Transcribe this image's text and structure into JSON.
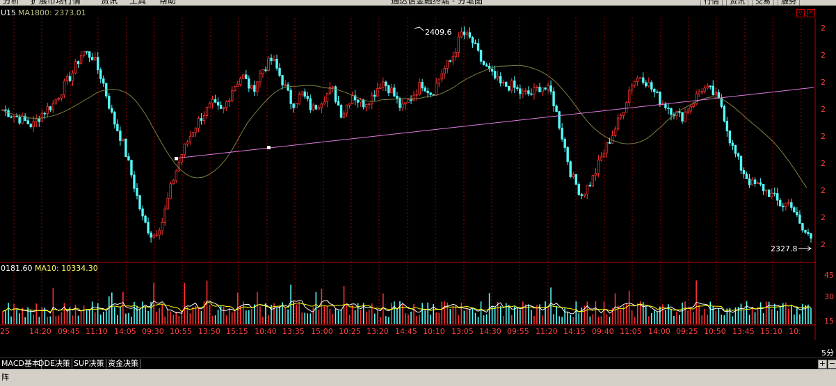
{
  "menu_items": [
    "分析",
    "扩展市场行情",
    "资讯",
    "工具",
    "帮助"
  ],
  "window_title": "通达信金融终端 - 分笔图",
  "toolbar_buttons": [
    "行情",
    "资讯",
    "交易",
    "服务"
  ],
  "indicator_header": {
    "symbol": "U15",
    "ma_label": "MA1800: 2373.01"
  },
  "price_markers": {
    "high": "2409.6",
    "low": "2327.8"
  },
  "price_axis_label": "2",
  "volume_header": {
    "value": "0181.60",
    "ma_label": "MA10: 10334.30"
  },
  "volume_axis": [
    "45",
    "30",
    "15"
  ],
  "time_labels": [
    "25",
    "14:20",
    "09:45",
    "11:10",
    "14:05",
    "09:30",
    "10:55",
    "13:50",
    "15:15",
    "10:40",
    "13:35",
    "15:00",
    "10:25",
    "13:20",
    "14:45",
    "10:10",
    "13:05",
    "14:30",
    "09:55",
    "11:20",
    "14:15",
    "09:40",
    "11:05",
    "14:00",
    "09:25",
    "10:50",
    "13:45",
    "15:10",
    "10:"
  ],
  "period_label": "5分",
  "tabs": [
    "MACD基本",
    "DDE决策",
    "SUP决策",
    "资金决策"
  ],
  "status_label": "阵",
  "zoom_buttons": [
    "+",
    "−"
  ],
  "colors": {
    "up": "#ff3232",
    "down": "#54fcfc",
    "ma": "#808040",
    "trend": "#e07ae0",
    "grid": "#a00000",
    "volume_ma1": "#ffffff",
    "volume_ma2": "#ffff00"
  },
  "chart_data": {
    "type": "candlestick",
    "price_range": [
      2322,
      2412
    ],
    "high": 2409.6,
    "low": 2327.8,
    "ma1800": 2373.01,
    "close_series": [
      2378,
      2376,
      2374,
      2372,
      2377,
      2380,
      2386,
      2392,
      2400,
      2398,
      2389,
      2375,
      2366,
      2352,
      2337,
      2330,
      2336,
      2351,
      2362,
      2370,
      2376,
      2380,
      2377,
      2386,
      2391,
      2385,
      2393,
      2397,
      2389,
      2380,
      2384,
      2378,
      2382,
      2386,
      2376,
      2384,
      2380,
      2383,
      2389,
      2385,
      2378,
      2383,
      2388,
      2384,
      2392,
      2397,
      2407,
      2404,
      2396,
      2391,
      2387,
      2387,
      2384,
      2384,
      2387,
      2384,
      2369,
      2353,
      2346,
      2351,
      2360,
      2368,
      2376,
      2388,
      2391,
      2386,
      2381,
      2378,
      2375,
      2380,
      2386,
      2385,
      2380,
      2365,
      2356,
      2350,
      2349,
      2346,
      2342,
      2343,
      2333,
      2330
    ],
    "volume_ma10": 10334.3,
    "volume_axis": [
      45,
      30,
      15
    ]
  }
}
